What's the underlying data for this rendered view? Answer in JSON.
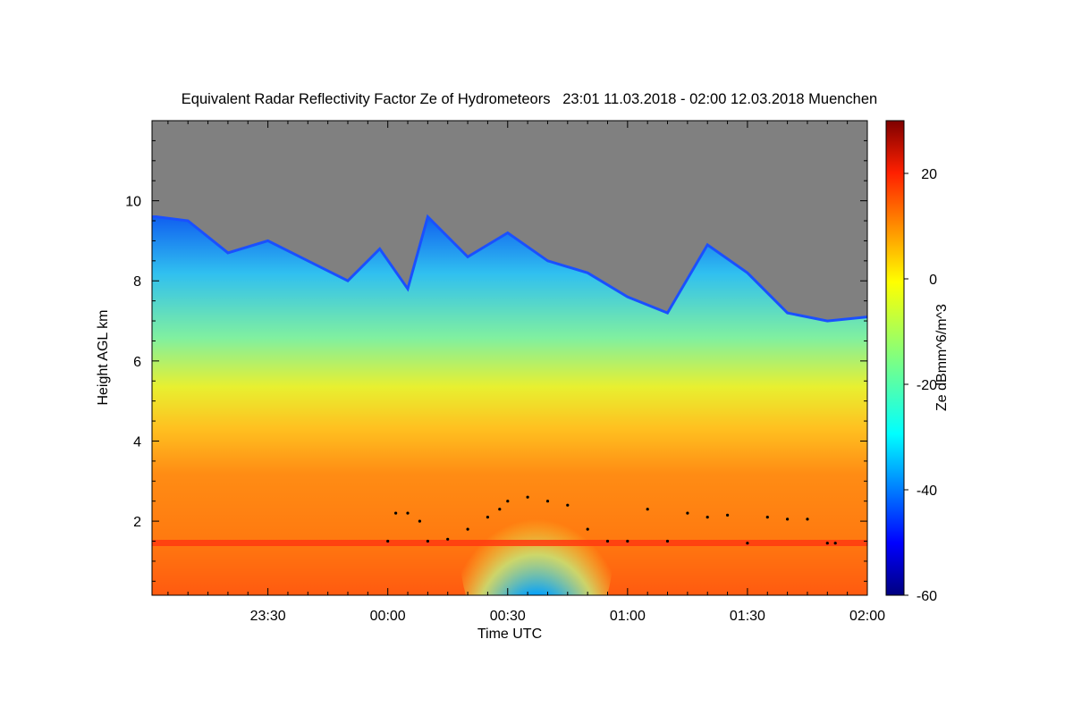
{
  "chart_data": {
    "type": "heatmap",
    "title": "Equivalent Radar Reflectivity Factor Ze of Hydrometeors   23:01 11.03.2018 - 02:00 12.03.2018 Muenchen",
    "xlabel": "Time UTC",
    "ylabel": "Height AGL km",
    "xlim": [
      "23:01",
      "02:00"
    ],
    "ylim": [
      0.15,
      12
    ],
    "x_ticks": [
      "23:30",
      "00:00",
      "00:30",
      "01:00",
      "01:30",
      "02:00"
    ],
    "y_ticks": [
      2,
      4,
      6,
      8,
      10
    ],
    "no_signal_color": "#808080",
    "colorbar": {
      "label": "Ze dBmm^6/m^3",
      "range": [
        -60,
        30
      ],
      "ticks": [
        -60,
        -40,
        -20,
        0,
        20
      ],
      "colormap": "jet"
    },
    "echo_top_km": [
      {
        "time": "23:02",
        "height": 9.6
      },
      {
        "time": "23:10",
        "height": 9.5
      },
      {
        "time": "23:20",
        "height": 8.7
      },
      {
        "time": "23:30",
        "height": 9.0
      },
      {
        "time": "23:40",
        "height": 8.5
      },
      {
        "time": "23:50",
        "height": 8.0
      },
      {
        "time": "23:58",
        "height": 8.8
      },
      {
        "time": "00:05",
        "height": 7.8
      },
      {
        "time": "00:10",
        "height": 9.6
      },
      {
        "time": "00:20",
        "height": 8.6
      },
      {
        "time": "00:30",
        "height": 9.2
      },
      {
        "time": "00:40",
        "height": 8.5
      },
      {
        "time": "00:50",
        "height": 8.2
      },
      {
        "time": "01:00",
        "height": 7.6
      },
      {
        "time": "01:10",
        "height": 7.2
      },
      {
        "time": "01:20",
        "height": 8.9
      },
      {
        "time": "01:30",
        "height": 8.2
      },
      {
        "time": "01:40",
        "height": 7.2
      },
      {
        "time": "01:50",
        "height": 7.0
      },
      {
        "time": "02:00",
        "height": 7.1
      }
    ],
    "cloud_base_points_km": [
      {
        "time": "00:00",
        "height": 1.5
      },
      {
        "time": "00:02",
        "height": 2.2
      },
      {
        "time": "00:05",
        "height": 2.2
      },
      {
        "time": "00:08",
        "height": 2.0
      },
      {
        "time": "00:10",
        "height": 1.5
      },
      {
        "time": "00:15",
        "height": 1.55
      },
      {
        "time": "00:20",
        "height": 1.8
      },
      {
        "time": "00:25",
        "height": 2.1
      },
      {
        "time": "00:28",
        "height": 2.3
      },
      {
        "time": "00:30",
        "height": 2.5
      },
      {
        "time": "00:35",
        "height": 2.6
      },
      {
        "time": "00:40",
        "height": 2.5
      },
      {
        "time": "00:45",
        "height": 2.4
      },
      {
        "time": "00:50",
        "height": 1.8
      },
      {
        "time": "00:55",
        "height": 1.5
      },
      {
        "time": "01:00",
        "height": 1.5
      },
      {
        "time": "01:05",
        "height": 2.3
      },
      {
        "time": "01:10",
        "height": 1.5
      },
      {
        "time": "01:15",
        "height": 2.2
      },
      {
        "time": "01:20",
        "height": 2.1
      },
      {
        "time": "01:25",
        "height": 2.15
      },
      {
        "time": "01:30",
        "height": 1.45
      },
      {
        "time": "01:35",
        "height": 2.1
      },
      {
        "time": "01:40",
        "height": 2.05
      },
      {
        "time": "01:45",
        "height": 2.05
      },
      {
        "time": "01:50",
        "height": 1.45
      },
      {
        "time": "01:52",
        "height": 1.45
      }
    ]
  }
}
